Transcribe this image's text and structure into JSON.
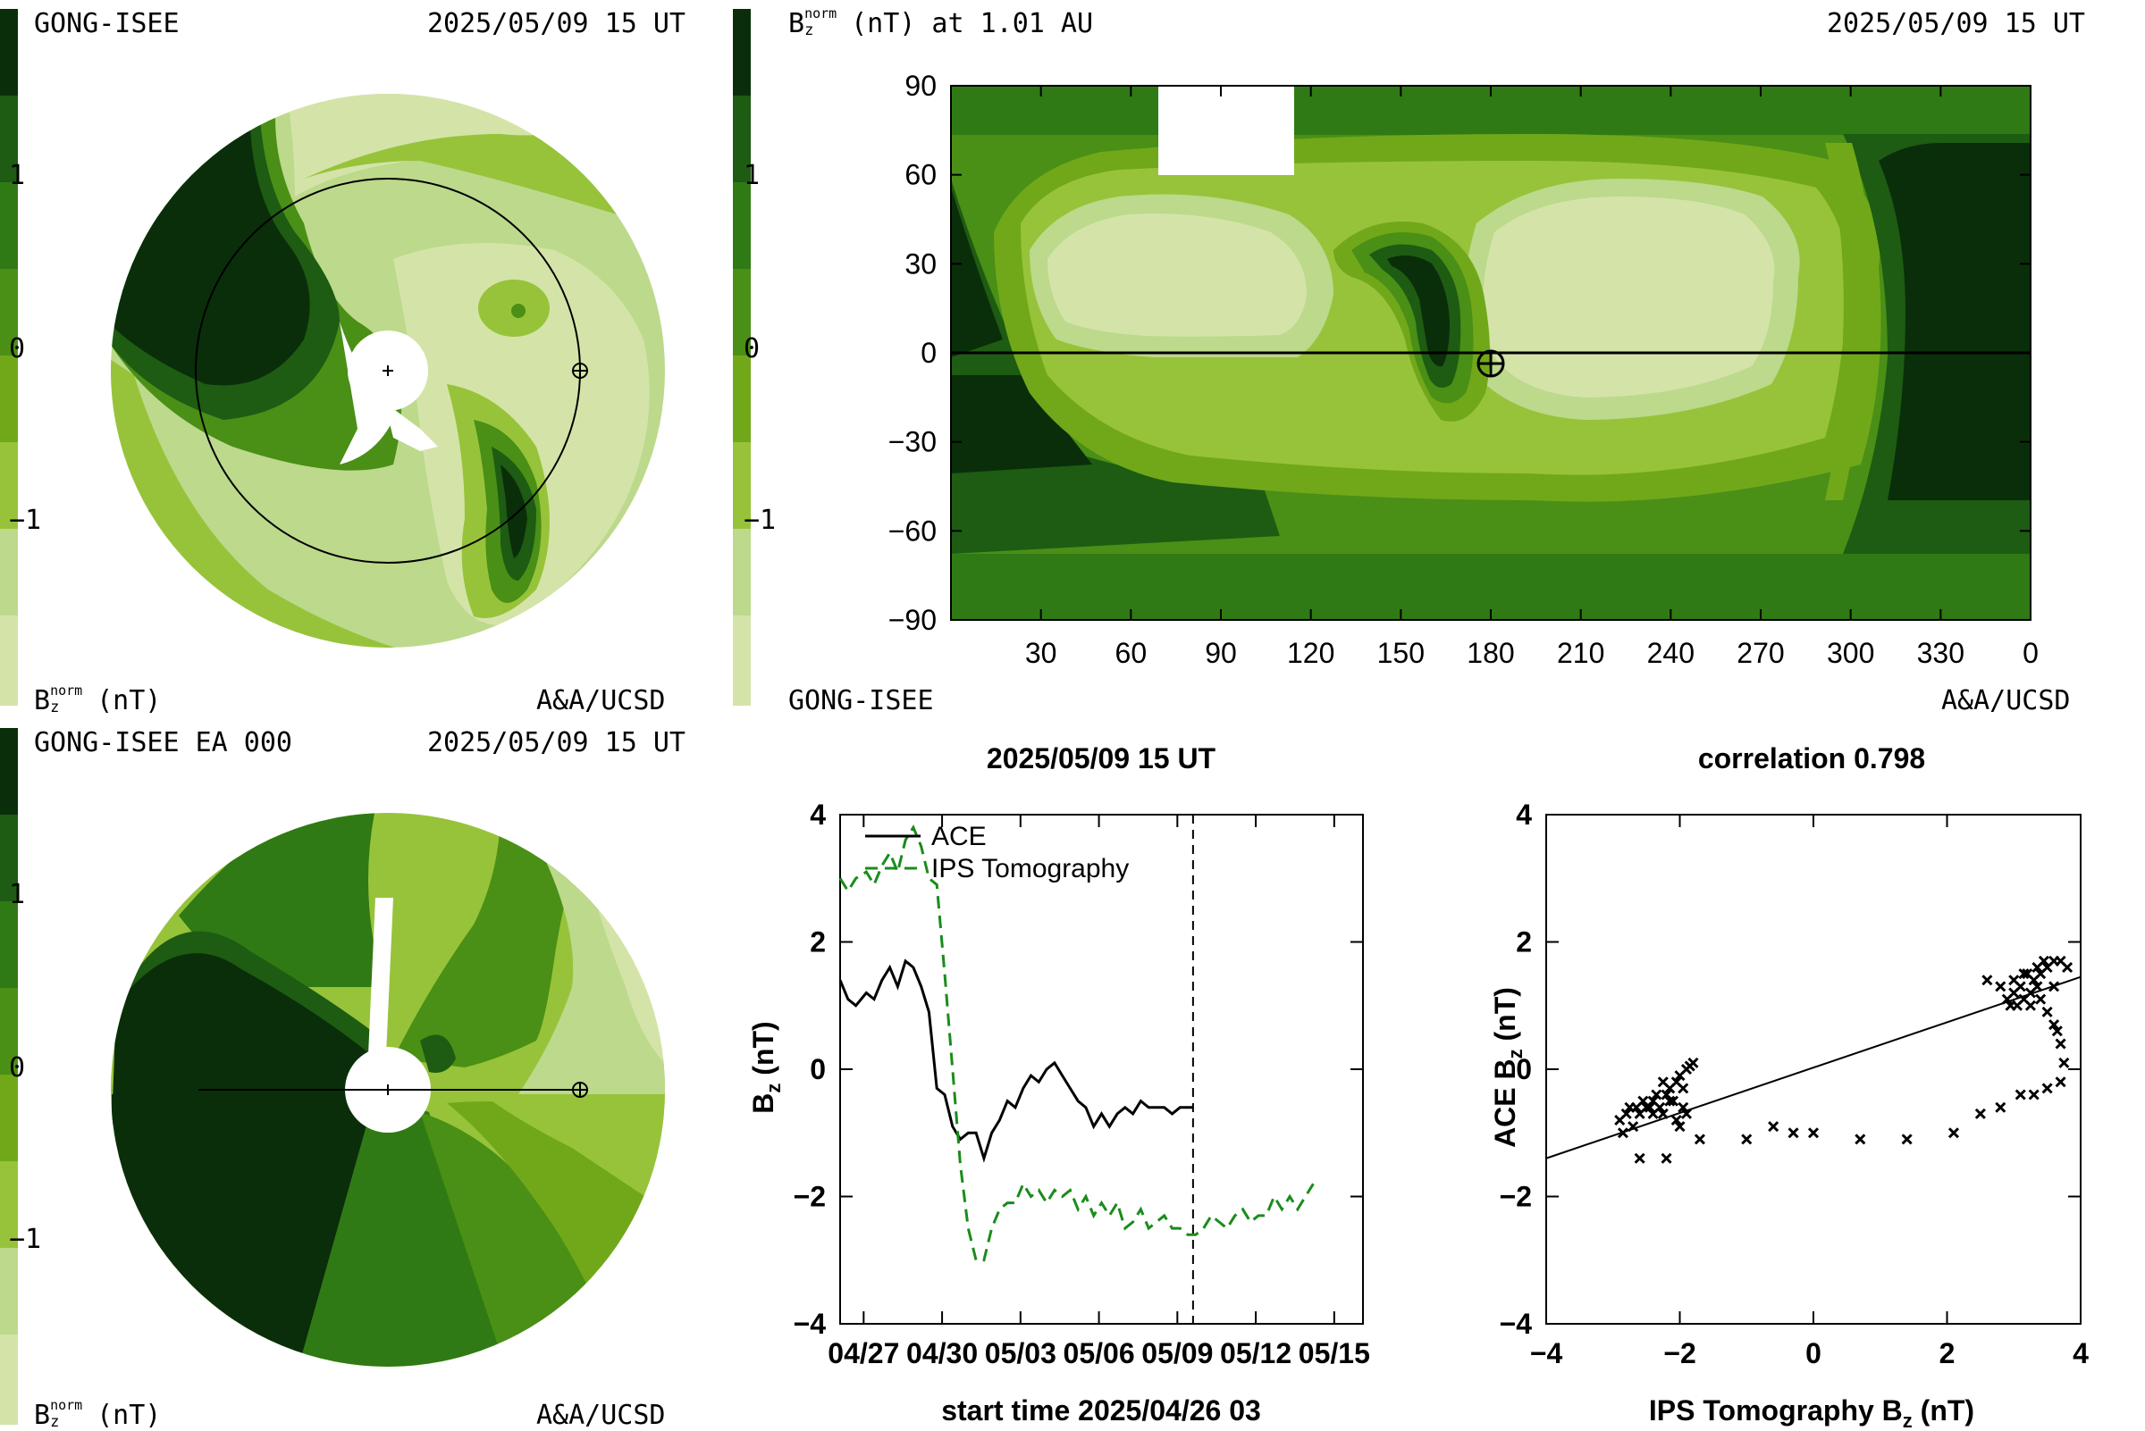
{
  "colors": {
    "levels": [
      "#0a2e0a",
      "#1d5c12",
      "#2f7a14",
      "#4a8f16",
      "#71a81a",
      "#97c33a",
      "#bcd98c",
      "#d4e4a8"
    ],
    "tomography_line": "#1a8c1a",
    "ace_line": "#000000"
  },
  "colorbar": {
    "ticks": [
      "1",
      "0",
      "−1"
    ],
    "tick_values": [
      1,
      0,
      -1
    ],
    "range": [
      -2,
      2
    ]
  },
  "panel_tl": {
    "source": "GONG-ISEE",
    "timestamp": "2025/05/09 15 UT",
    "quantity_base": "B",
    "quantity_sub": "z",
    "quantity_sup": "norm",
    "unit": "(nT)",
    "credit": "A&A/UCSD"
  },
  "panel_bl": {
    "source": "GONG-ISEE EA 000",
    "timestamp": "2025/05/09 15 UT",
    "quantity_base": "B",
    "quantity_sub": "z",
    "quantity_sup": "norm",
    "unit": "(nT)",
    "credit": "A&A/UCSD"
  },
  "panel_tr": {
    "title_base": "B",
    "title_sub": "z",
    "title_sup": "norm",
    "title_rest": "(nT) at 1.01 AU",
    "timestamp": "2025/05/09 15 UT",
    "source": "GONG-ISEE",
    "credit": "A&A/UCSD",
    "yticks": [
      "90",
      "60",
      "30",
      "0",
      "−30",
      "−60",
      "−90"
    ],
    "ytick_values": [
      90,
      60,
      30,
      0,
      -30,
      -60,
      -90
    ],
    "xticks": [
      "30",
      "60",
      "90",
      "120",
      "150",
      "180",
      "210",
      "240",
      "270",
      "300",
      "330",
      "0"
    ],
    "xtick_values": [
      30,
      60,
      90,
      120,
      150,
      180,
      210,
      240,
      270,
      300,
      330,
      360
    ]
  },
  "chart_data": [
    {
      "type": "line",
      "title": "2025/05/09 15 UT",
      "xlabel": "start time 2025/04/26 03",
      "ylabel_base": "B",
      "ylabel_sub": "z",
      "ylabel_rest": "(nT)",
      "ylim": [
        -4,
        4
      ],
      "yticks": [
        4,
        2,
        0,
        -2,
        -4
      ],
      "ytick_labels": [
        "4",
        "2",
        "0",
        "−2",
        "−4"
      ],
      "xlim": [
        0,
        20
      ],
      "xticks": [
        0.9,
        3.9,
        6.9,
        9.9,
        12.9,
        15.9,
        18.9
      ],
      "xtick_labels": [
        "04/27",
        "04/30",
        "05/03",
        "05/06",
        "05/09",
        "05/12",
        "05/15"
      ],
      "current_time_x": 13.5,
      "legend": [
        "ACE",
        "IPS Tomography"
      ],
      "legend_placement": "top-left",
      "series": [
        {
          "name": "ACE",
          "x": [
            0,
            0.3,
            0.6,
            1.0,
            1.3,
            1.6,
            1.9,
            2.2,
            2.5,
            2.8,
            3.1,
            3.4,
            3.7,
            4.0,
            4.3,
            4.6,
            4.9,
            5.2,
            5.5,
            5.8,
            6.1,
            6.4,
            6.7,
            7.0,
            7.3,
            7.6,
            7.9,
            8.2,
            8.5,
            8.8,
            9.1,
            9.4,
            9.7,
            10.0,
            10.3,
            10.6,
            10.9,
            11.2,
            11.5,
            11.8,
            12.1,
            12.4,
            12.7,
            13.0,
            13.5
          ],
          "y": [
            1.4,
            1.1,
            1.0,
            1.2,
            1.1,
            1.4,
            1.6,
            1.3,
            1.7,
            1.6,
            1.3,
            0.9,
            -0.3,
            -0.4,
            -0.9,
            -1.1,
            -1.0,
            -1.0,
            -1.4,
            -1.0,
            -0.8,
            -0.5,
            -0.6,
            -0.3,
            -0.1,
            -0.2,
            0.0,
            0.1,
            -0.1,
            -0.3,
            -0.5,
            -0.6,
            -0.9,
            -0.7,
            -0.9,
            -0.7,
            -0.6,
            -0.7,
            -0.5,
            -0.6,
            -0.6,
            -0.6,
            -0.7,
            -0.6,
            -0.6
          ]
        },
        {
          "name": "IPS Tomography",
          "x": [
            0,
            0.3,
            0.6,
            1.0,
            1.3,
            1.6,
            1.9,
            2.2,
            2.5,
            2.8,
            3.1,
            3.4,
            3.7,
            4.0,
            4.3,
            4.6,
            4.9,
            5.2,
            5.5,
            5.8,
            6.1,
            6.4,
            6.7,
            7.0,
            7.3,
            7.6,
            7.9,
            8.2,
            8.5,
            8.8,
            9.1,
            9.4,
            9.7,
            10.0,
            10.3,
            10.6,
            10.9,
            11.2,
            11.5,
            11.8,
            12.1,
            12.4,
            12.7,
            13.0,
            13.3,
            13.6,
            13.9,
            14.2,
            14.5,
            14.8,
            15.1,
            15.4,
            15.7,
            16.0,
            16.3,
            16.6,
            16.9,
            17.2,
            17.5,
            17.8,
            18.1
          ],
          "y": [
            3.0,
            2.8,
            3.0,
            3.1,
            2.9,
            3.2,
            3.4,
            3.1,
            3.6,
            3.8,
            3.5,
            3.0,
            2.9,
            1.5,
            0.0,
            -1.5,
            -2.5,
            -3.0,
            -3.0,
            -2.5,
            -2.2,
            -2.1,
            -2.1,
            -1.8,
            -2.0,
            -1.9,
            -2.1,
            -1.9,
            -2.0,
            -1.9,
            -2.2,
            -2.0,
            -2.3,
            -2.1,
            -2.3,
            -2.1,
            -2.5,
            -2.4,
            -2.2,
            -2.5,
            -2.4,
            -2.3,
            -2.5,
            -2.5,
            -2.6,
            -2.6,
            -2.5,
            -2.3,
            -2.4,
            -2.5,
            -2.3,
            -2.2,
            -2.4,
            -2.3,
            -2.3,
            -2.0,
            -2.2,
            -2.0,
            -2.2,
            -2.0,
            -1.8
          ]
        }
      ]
    },
    {
      "type": "scatter",
      "title": "correlation 0.798",
      "xlabel_base": "IPS Tomography B",
      "xlabel_sub": "z",
      "xlabel_rest": "(nT)",
      "ylabel_base": "ACE B",
      "ylabel_sub": "z",
      "ylabel_rest": "(nT)",
      "xlim": [
        -4,
        4
      ],
      "ylim": [
        -4,
        4
      ],
      "xticks": [
        -4,
        -2,
        0,
        2,
        4
      ],
      "xtick_labels": [
        "−4",
        "−2",
        "0",
        "2",
        "4"
      ],
      "yticks": [
        4,
        2,
        0,
        -2,
        -4
      ],
      "ytick_labels": [
        "4",
        "2",
        "0",
        "−2",
        "−4"
      ],
      "fit_line": {
        "x": [
          -4,
          4
        ],
        "y": [
          -1.4,
          1.45
        ]
      },
      "points": [
        [
          -2.9,
          -0.8
        ],
        [
          -2.85,
          -1.0
        ],
        [
          -2.8,
          -0.7
        ],
        [
          -2.75,
          -0.6
        ],
        [
          -2.7,
          -0.9
        ],
        [
          -2.65,
          -0.6
        ],
        [
          -2.6,
          -0.7
        ],
        [
          -2.55,
          -0.5
        ],
        [
          -2.5,
          -0.6
        ],
        [
          -2.45,
          -0.6
        ],
        [
          -2.4,
          -0.5
        ],
        [
          -2.35,
          -0.4
        ],
        [
          -2.3,
          -0.6
        ],
        [
          -2.25,
          -0.7
        ],
        [
          -2.2,
          -0.4
        ],
        [
          -2.15,
          -0.3
        ],
        [
          -2.1,
          -0.5
        ],
        [
          -2.05,
          -0.2
        ],
        [
          -2.0,
          -0.1
        ],
        [
          -1.95,
          -0.3
        ],
        [
          -1.9,
          0.0
        ],
        [
          -1.85,
          0.05
        ],
        [
          -1.8,
          0.1
        ],
        [
          -1.95,
          -0.6
        ],
        [
          -2.05,
          -0.8
        ],
        [
          -2.15,
          -0.5
        ],
        [
          -2.0,
          -0.9
        ],
        [
          -1.9,
          -0.7
        ],
        [
          -2.25,
          -0.2
        ],
        [
          -2.4,
          -0.7
        ],
        [
          -2.6,
          -1.4
        ],
        [
          -2.2,
          -1.4
        ],
        [
          -1.7,
          -1.1
        ],
        [
          -1.0,
          -1.1
        ],
        [
          -0.6,
          -0.9
        ],
        [
          -0.3,
          -1.0
        ],
        [
          0.0,
          -1.0
        ],
        [
          0.7,
          -1.1
        ],
        [
          1.4,
          -1.1
        ],
        [
          2.1,
          -1.0
        ],
        [
          2.5,
          -0.7
        ],
        [
          2.8,
          -0.6
        ],
        [
          3.1,
          -0.4
        ],
        [
          3.3,
          -0.4
        ],
        [
          3.5,
          -0.3
        ],
        [
          3.7,
          -0.2
        ],
        [
          3.75,
          0.1
        ],
        [
          3.7,
          0.4
        ],
        [
          3.65,
          0.6
        ],
        [
          3.6,
          0.7
        ],
        [
          3.5,
          0.9
        ],
        [
          3.4,
          1.1
        ],
        [
          3.6,
          1.3
        ],
        [
          2.6,
          1.4
        ],
        [
          2.8,
          1.3
        ],
        [
          2.9,
          1.1
        ],
        [
          3.0,
          1.2
        ],
        [
          3.0,
          1.4
        ],
        [
          3.05,
          1.0
        ],
        [
          3.1,
          1.3
        ],
        [
          3.15,
          1.1
        ],
        [
          3.2,
          1.5
        ],
        [
          3.25,
          1.2
        ],
        [
          3.3,
          1.4
        ],
        [
          3.35,
          1.6
        ],
        [
          3.4,
          1.5
        ],
        [
          3.45,
          1.7
        ],
        [
          3.5,
          1.6
        ],
        [
          3.6,
          1.7
        ],
        [
          3.7,
          1.7
        ],
        [
          3.8,
          1.6
        ],
        [
          3.25,
          1.0
        ],
        [
          2.95,
          1.0
        ],
        [
          3.15,
          1.5
        ],
        [
          3.35,
          1.3
        ]
      ]
    }
  ]
}
